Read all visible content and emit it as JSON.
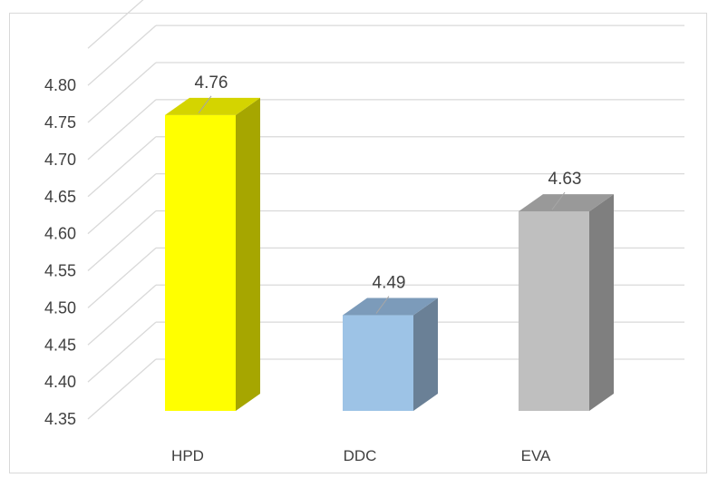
{
  "chart_data": {
    "type": "bar",
    "style": "3d-column",
    "categories": [
      "HPD",
      "DDC",
      "EVA"
    ],
    "values": [
      4.76,
      4.49,
      4.63
    ],
    "data_labels": [
      "4.76",
      "4.49",
      "4.63"
    ],
    "y_ticks": [
      "4.35",
      "4.40",
      "4.45",
      "4.50",
      "4.55",
      "4.60",
      "4.65",
      "4.70",
      "4.75",
      "4.80"
    ],
    "ylim": [
      4.35,
      4.85
    ],
    "grid": true,
    "legend": "none",
    "colors": [
      {
        "front": "#FFFF00",
        "side": "#A6A600",
        "top": "#D4D400"
      },
      {
        "front": "#9DC3E6",
        "side": "#6A8096",
        "top": "#7C9BBA"
      },
      {
        "front": "#BFBFBF",
        "side": "#7F7F7F",
        "top": "#999999"
      }
    ]
  }
}
